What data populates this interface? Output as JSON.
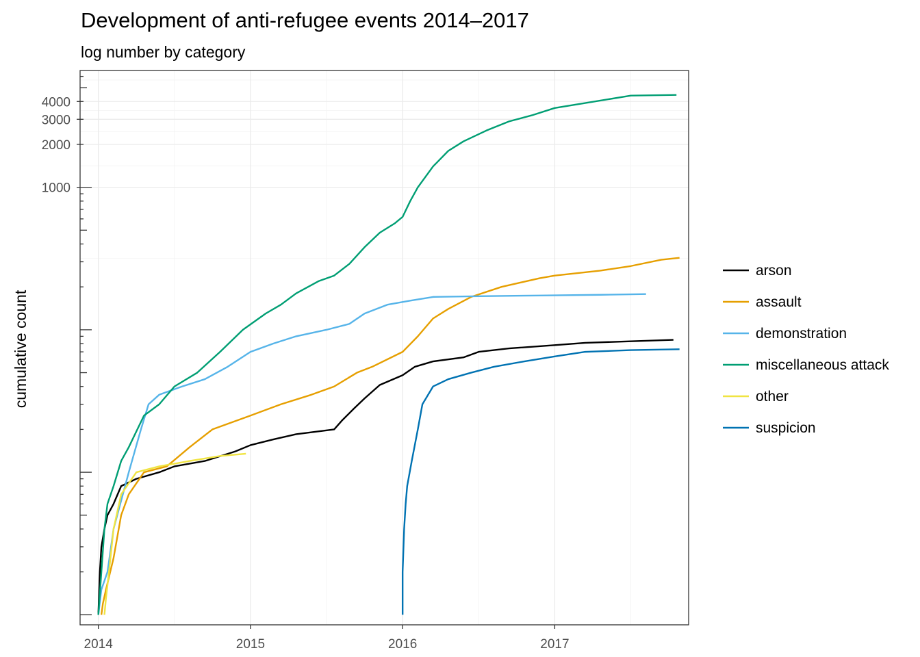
{
  "chart_data": {
    "type": "line",
    "title": "Development of anti-refugee events 2014–2017",
    "subtitle": "log number by category",
    "xlabel": "",
    "ylabel": "cumulative count",
    "y_scale": "log10",
    "xlim": [
      2013.88,
      2017.88
    ],
    "ylim": [
      0.85,
      6600
    ],
    "x_ticks": [
      2014,
      2015,
      2016,
      2017
    ],
    "x_tick_labels": [
      "2014",
      "2015",
      "2016",
      "2017"
    ],
    "y_ticks": [
      1000,
      2000,
      3000,
      4000
    ],
    "y_tick_labels": [
      "1000",
      "2000",
      "3000",
      "4000"
    ],
    "grid": true,
    "legend_position": "right",
    "series": [
      {
        "name": "arson",
        "color": "#000000",
        "points": [
          [
            2014.0,
            1
          ],
          [
            2014.01,
            2
          ],
          [
            2014.02,
            3
          ],
          [
            2014.04,
            4
          ],
          [
            2014.06,
            5
          ],
          [
            2014.1,
            6
          ],
          [
            2014.15,
            8
          ],
          [
            2014.25,
            9
          ],
          [
            2014.4,
            10
          ],
          [
            2014.5,
            11
          ],
          [
            2014.7,
            12
          ],
          [
            2014.9,
            14
          ],
          [
            2015.0,
            15.5
          ],
          [
            2015.15,
            17
          ],
          [
            2015.3,
            18.5
          ],
          [
            2015.55,
            20
          ],
          [
            2015.6,
            23
          ],
          [
            2015.68,
            28
          ],
          [
            2015.75,
            33
          ],
          [
            2015.85,
            41
          ],
          [
            2016.0,
            48
          ],
          [
            2016.08,
            55
          ],
          [
            2016.2,
            60
          ],
          [
            2016.4,
            64
          ],
          [
            2016.5,
            70
          ],
          [
            2016.7,
            74
          ],
          [
            2017.0,
            78
          ],
          [
            2017.2,
            81
          ],
          [
            2017.5,
            83
          ],
          [
            2017.78,
            85
          ]
        ]
      },
      {
        "name": "assault",
        "color": "#E69F00",
        "points": [
          [
            2014.02,
            1
          ],
          [
            2014.03,
            1.2
          ],
          [
            2014.05,
            1.5
          ],
          [
            2014.1,
            2.5
          ],
          [
            2014.15,
            5
          ],
          [
            2014.2,
            7
          ],
          [
            2014.3,
            10
          ],
          [
            2014.45,
            11
          ],
          [
            2014.6,
            15
          ],
          [
            2014.75,
            20
          ],
          [
            2015.0,
            25
          ],
          [
            2015.2,
            30
          ],
          [
            2015.4,
            35
          ],
          [
            2015.55,
            40
          ],
          [
            2015.7,
            50
          ],
          [
            2015.8,
            55
          ],
          [
            2016.0,
            70
          ],
          [
            2016.1,
            90
          ],
          [
            2016.2,
            120
          ],
          [
            2016.3,
            140
          ],
          [
            2016.45,
            170
          ],
          [
            2016.65,
            200
          ],
          [
            2016.9,
            230
          ],
          [
            2017.0,
            240
          ],
          [
            2017.3,
            260
          ],
          [
            2017.5,
            280
          ],
          [
            2017.7,
            310
          ],
          [
            2017.82,
            320
          ]
        ]
      },
      {
        "name": "demonstration",
        "color": "#56B4E9",
        "points": [
          [
            2014.0,
            1
          ],
          [
            2014.02,
            1.5
          ],
          [
            2014.06,
            2
          ],
          [
            2014.1,
            4
          ],
          [
            2014.2,
            10
          ],
          [
            2014.28,
            20
          ],
          [
            2014.33,
            30
          ],
          [
            2014.4,
            35
          ],
          [
            2014.55,
            40
          ],
          [
            2014.7,
            45
          ],
          [
            2014.85,
            55
          ],
          [
            2015.0,
            70
          ],
          [
            2015.15,
            80
          ],
          [
            2015.3,
            90
          ],
          [
            2015.5,
            100
          ],
          [
            2015.65,
            110
          ],
          [
            2015.75,
            130
          ],
          [
            2015.9,
            150
          ],
          [
            2016.05,
            160
          ],
          [
            2016.2,
            170
          ],
          [
            2016.5,
            172
          ],
          [
            2016.9,
            174
          ],
          [
            2017.3,
            176
          ],
          [
            2017.6,
            178
          ]
        ]
      },
      {
        "name": "miscellaneous attack",
        "color": "#009E73",
        "points": [
          [
            2014.0,
            1
          ],
          [
            2014.02,
            2
          ],
          [
            2014.04,
            4
          ],
          [
            2014.06,
            6
          ],
          [
            2014.1,
            8
          ],
          [
            2014.15,
            12
          ],
          [
            2014.2,
            15
          ],
          [
            2014.3,
            25
          ],
          [
            2014.4,
            30
          ],
          [
            2014.5,
            40
          ],
          [
            2014.65,
            50
          ],
          [
            2014.8,
            70
          ],
          [
            2014.95,
            100
          ],
          [
            2015.1,
            130
          ],
          [
            2015.2,
            150
          ],
          [
            2015.3,
            180
          ],
          [
            2015.45,
            220
          ],
          [
            2015.55,
            240
          ],
          [
            2015.65,
            290
          ],
          [
            2015.75,
            380
          ],
          [
            2015.85,
            480
          ],
          [
            2015.95,
            560
          ],
          [
            2016.0,
            620
          ],
          [
            2016.05,
            800
          ],
          [
            2016.1,
            1000
          ],
          [
            2016.2,
            1400
          ],
          [
            2016.3,
            1800
          ],
          [
            2016.4,
            2100
          ],
          [
            2016.55,
            2500
          ],
          [
            2016.7,
            2900
          ],
          [
            2016.85,
            3200
          ],
          [
            2017.0,
            3600
          ],
          [
            2017.2,
            3900
          ],
          [
            2017.5,
            4400
          ],
          [
            2017.8,
            4450
          ]
        ]
      },
      {
        "name": "other",
        "color": "#F0E442",
        "points": [
          [
            2014.04,
            1
          ],
          [
            2014.05,
            1.3
          ],
          [
            2014.07,
            2
          ],
          [
            2014.1,
            4
          ],
          [
            2014.15,
            7
          ],
          [
            2014.25,
            10
          ],
          [
            2014.4,
            11
          ],
          [
            2014.6,
            12
          ],
          [
            2014.8,
            13
          ],
          [
            2014.97,
            13.5
          ]
        ]
      },
      {
        "name": "suspicion",
        "color": "#0072B2",
        "points": [
          [
            2016.0,
            1
          ],
          [
            2016.0,
            2
          ],
          [
            2016.01,
            4
          ],
          [
            2016.02,
            6
          ],
          [
            2016.03,
            8
          ],
          [
            2016.06,
            12
          ],
          [
            2016.1,
            20
          ],
          [
            2016.13,
            30
          ],
          [
            2016.2,
            40
          ],
          [
            2016.3,
            45
          ],
          [
            2016.45,
            50
          ],
          [
            2016.6,
            55
          ],
          [
            2016.8,
            60
          ],
          [
            2017.0,
            65
          ],
          [
            2017.2,
            70
          ],
          [
            2017.5,
            72
          ],
          [
            2017.82,
            73
          ]
        ]
      }
    ]
  }
}
